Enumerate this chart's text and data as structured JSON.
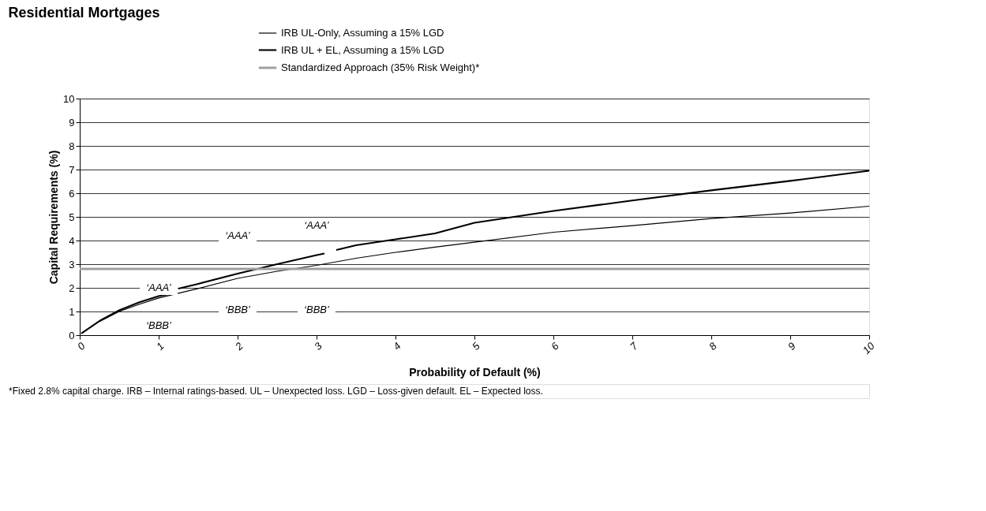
{
  "chart_data": {
    "type": "line",
    "title": "Residential Mortgages",
    "xlabel": "Probability of Default (%)",
    "ylabel": "Capital Requirements (%)",
    "xlim": [
      0,
      10
    ],
    "xticks": [
      0,
      1,
      2,
      3,
      4,
      5,
      6,
      7,
      8,
      9,
      10
    ],
    "ylim": [
      0,
      10
    ],
    "yticks": [
      0,
      1,
      2,
      3,
      4,
      5,
      6,
      7,
      8,
      9,
      10
    ],
    "grid": "y",
    "legend": "top",
    "marker": "none",
    "series": [
      {
        "name": "IRB UL-Only, Assuming a 15% LGD",
        "color": "#000000",
        "x": [
          0.02,
          0.25,
          0.5,
          0.75,
          1,
          1.5,
          2,
          2.5,
          3,
          3.5,
          4,
          4.5,
          5,
          6,
          7,
          8,
          9,
          10
        ],
        "values": [
          0.07,
          0.58,
          1.0,
          1.3,
          1.57,
          1.97,
          2.4,
          2.7,
          2.95,
          3.25,
          3.5,
          3.72,
          3.93,
          4.35,
          4.63,
          4.93,
          5.16,
          5.45
        ]
      },
      {
        "name": "IRB UL + EL, Assuming a 15% LGD",
        "color": "#000000",
        "x": [
          0.02,
          0.25,
          0.5,
          0.75,
          1,
          1.15,
          1.2,
          1.25,
          1.5,
          2,
          2.5,
          3,
          3.1,
          3.18,
          3.25,
          3.5,
          4,
          4.5,
          5,
          6,
          7,
          8,
          9,
          10
        ],
        "values": [
          0.07,
          0.6,
          1.05,
          1.38,
          1.65,
          1.75,
          null,
          1.97,
          2.17,
          2.6,
          3.0,
          3.38,
          3.45,
          null,
          3.6,
          3.8,
          4.05,
          4.3,
          4.75,
          5.25,
          5.69,
          6.12,
          6.52,
          6.95
        ]
      },
      {
        "name": "Standardized Approach (35% Risk Weight)*",
        "color": "#a0a0a0",
        "x": [
          0,
          10
        ],
        "values": [
          2.8,
          2.8
        ]
      }
    ],
    "annotations": [
      "‘AAA’",
      "‘AAA’",
      "‘AAA’",
      "‘BBB’",
      "‘BBB’",
      "‘BBB’",
      "*Fixed 2.8% capital charge. IRB – Internal ratings-based. UL – Unexpected loss. LGD – Loss-given default. EL – Expected loss."
    ]
  }
}
